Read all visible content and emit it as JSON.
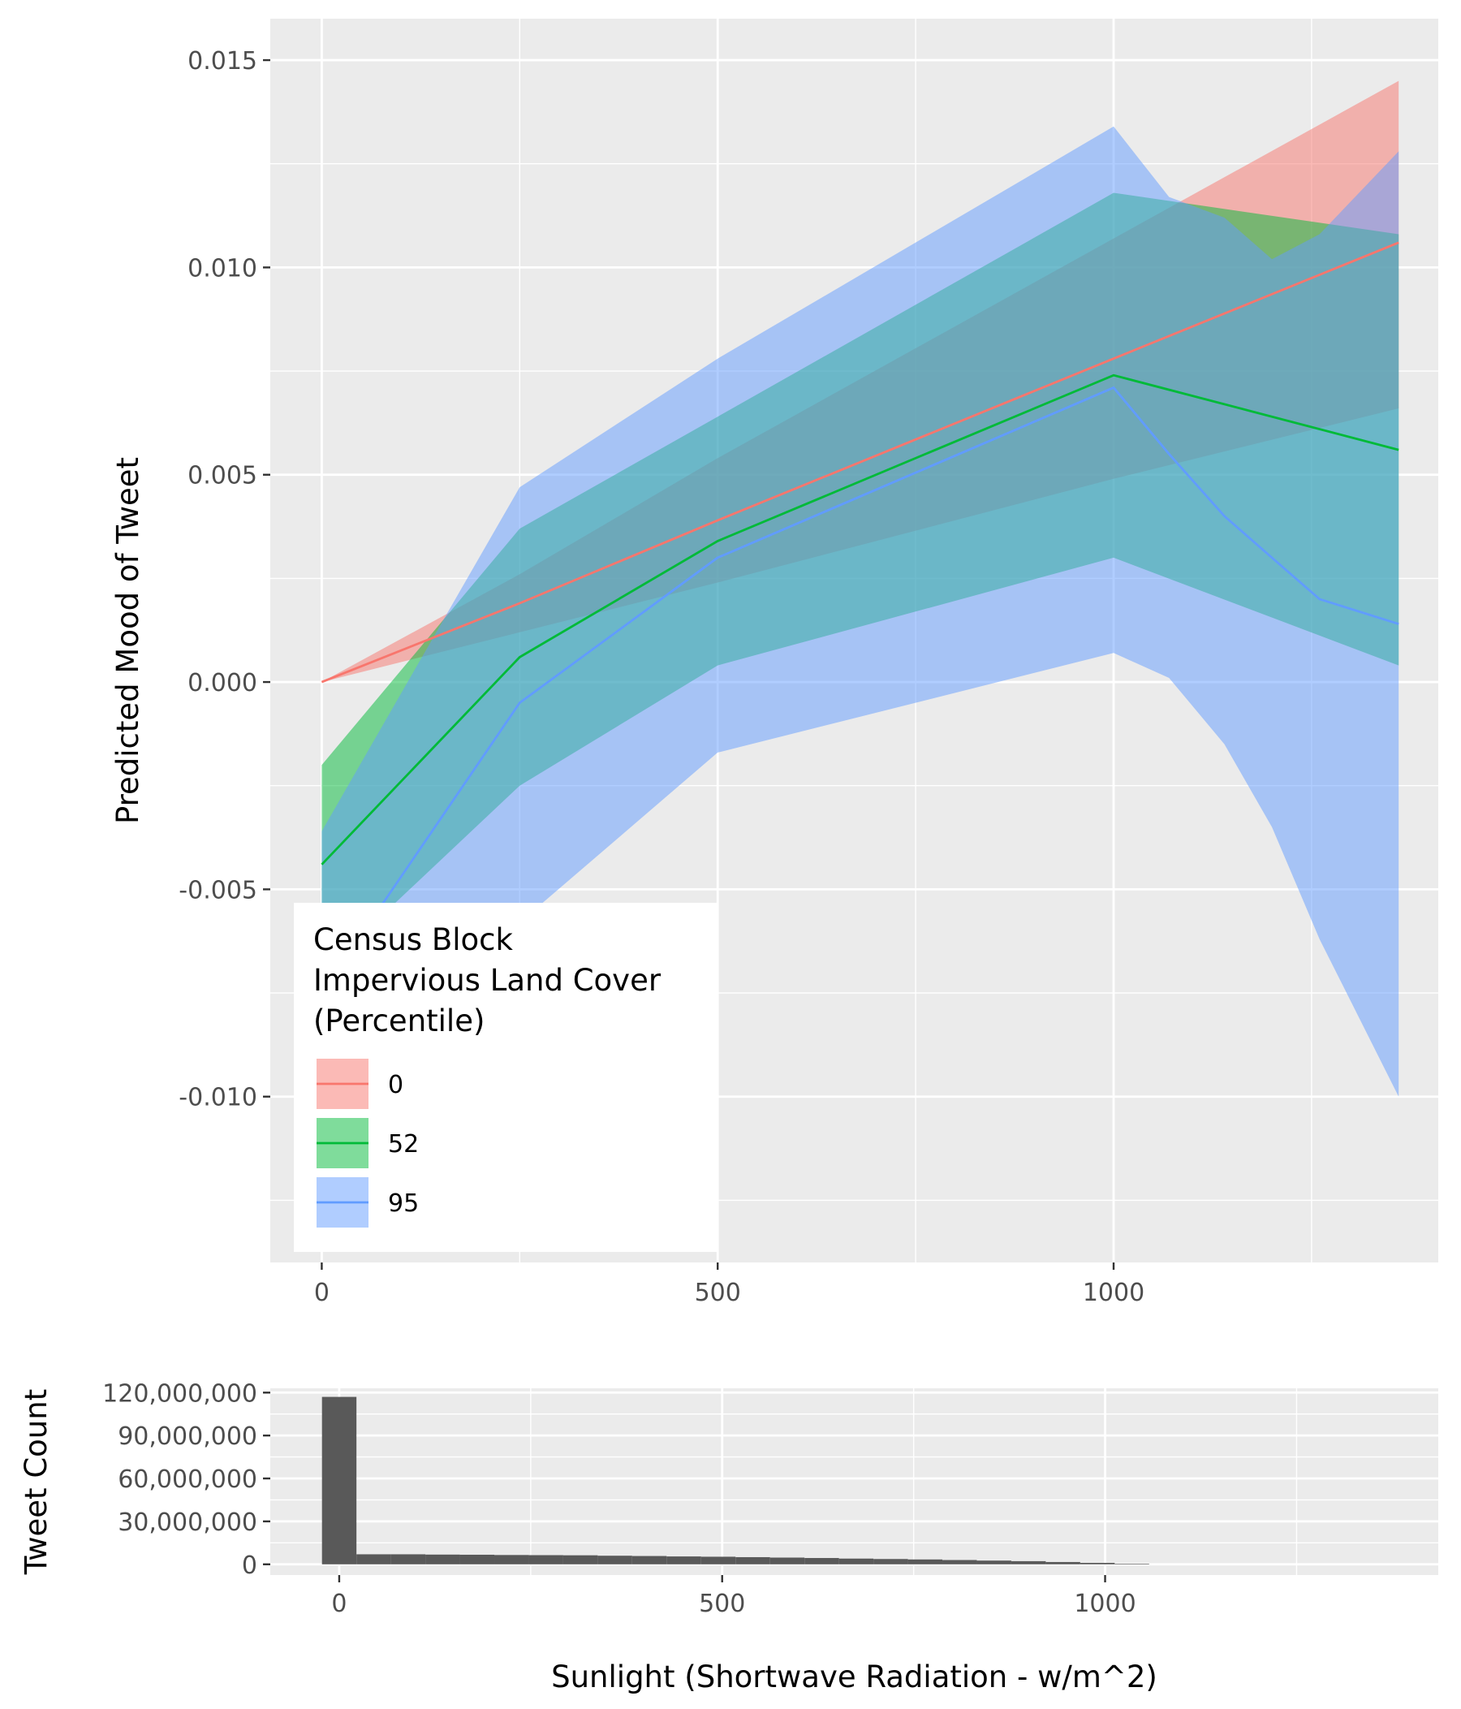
{
  "chart_data": [
    {
      "type": "line",
      "ylabel": "Predicted Mood of Tweet",
      "xlabel": "",
      "xlim": [
        -65,
        1410
      ],
      "ylim": [
        -0.014,
        0.016
      ],
      "x_ticks": [
        0,
        500,
        1000
      ],
      "x_tick_labels": [
        "0",
        "500",
        "1000"
      ],
      "x_minor_ticks": [
        250,
        750,
        1250
      ],
      "y_ticks": [
        0.015,
        0.01,
        0.005,
        0.0,
        -0.005,
        -0.01
      ],
      "y_tick_labels": [
        "0.015",
        "0.010",
        "0.005",
        "0.000",
        "-0.005",
        "-0.010"
      ],
      "y_minor_ticks": [
        0.0125,
        0.0075,
        0.0025,
        -0.0025,
        -0.0075,
        -0.0125
      ],
      "grid": true,
      "legend_position": "bottom-left",
      "legend": {
        "title_lines": [
          "Census Block",
          "Impervious Land Cover",
          "(Percentile)"
        ],
        "entries": [
          "0",
          "52",
          "95"
        ]
      },
      "series": [
        {
          "name": "0",
          "color": "#F8766D",
          "x": [
            0,
            250,
            500,
            1000,
            1360
          ],
          "y": [
            0.0,
            0.0019,
            0.0039,
            0.0078,
            0.0106
          ],
          "lower": [
            0.0,
            0.0012,
            0.0024,
            0.0049,
            0.0066
          ],
          "upper": [
            0.0,
            0.0026,
            0.0054,
            0.0107,
            0.0145
          ]
        },
        {
          "name": "52",
          "color": "#00BA38",
          "x": [
            0,
            250,
            500,
            1000,
            1360
          ],
          "y": [
            -0.0044,
            0.0006,
            0.0034,
            0.0074,
            0.0056
          ],
          "lower": [
            -0.007,
            -0.0025,
            0.0004,
            0.003,
            0.0004
          ],
          "upper": [
            -0.002,
            0.0037,
            0.0064,
            0.0118,
            0.0108
          ]
        },
        {
          "name": "95",
          "color": "#619CFF",
          "x": [
            0,
            250,
            500,
            1000,
            1070,
            1140,
            1200,
            1260,
            1360
          ],
          "y": [
            -0.0075,
            -0.0005,
            0.003,
            0.0071,
            0.0055,
            0.004,
            0.003,
            0.002,
            0.0014
          ],
          "lower": [
            -0.0125,
            -0.0058,
            -0.0017,
            0.0007,
            0.0001,
            -0.0015,
            -0.0035,
            -0.0062,
            -0.01
          ],
          "upper": [
            -0.0036,
            0.0047,
            0.0078,
            0.0134,
            0.0117,
            0.0112,
            0.0102,
            0.0108,
            0.0128
          ]
        }
      ]
    },
    {
      "type": "bar",
      "ylabel": "Tweet Count",
      "xlabel": "Sunlight (Shortwave Radiation - w/m^2)",
      "xlim": [
        -90,
        1435
      ],
      "ylim": [
        -7500000,
        123000000
      ],
      "x_ticks": [
        0,
        500,
        1000
      ],
      "x_tick_labels": [
        "0",
        "500",
        "1000"
      ],
      "x_minor_ticks": [
        250,
        750,
        1250
      ],
      "y_ticks": [
        0,
        30000000,
        60000000,
        90000000,
        120000000
      ],
      "y_tick_labels": [
        "0",
        "30,000,000",
        "60,000,000",
        "90,000,000",
        "120,000,000"
      ],
      "y_minor_ticks": [
        15000000,
        45000000,
        75000000,
        105000000
      ],
      "grid": true,
      "bin_width": 45,
      "bin_centers": [
        0,
        45,
        90,
        135,
        180,
        225,
        270,
        315,
        360,
        405,
        450,
        495,
        540,
        585,
        630,
        675,
        720,
        765,
        810,
        855,
        900,
        945,
        990,
        1035
      ],
      "values": [
        117000000,
        7000000,
        7000000,
        6800000,
        6700000,
        6500000,
        6400000,
        6300000,
        6000000,
        5800000,
        5500000,
        5300000,
        5000000,
        4700000,
        4400000,
        4000000,
        3700000,
        3400000,
        3000000,
        2600000,
        2200000,
        1600000,
        1000000,
        400000
      ]
    }
  ]
}
